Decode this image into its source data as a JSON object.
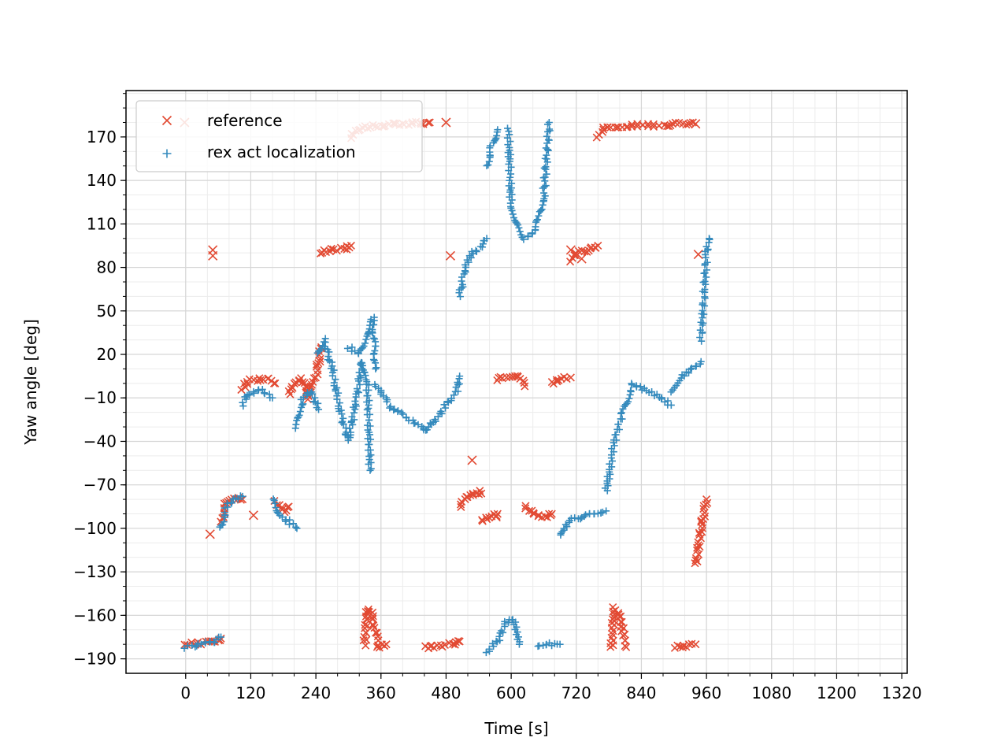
{
  "chart_data": {
    "type": "scatter",
    "title": "",
    "xlabel": "Time [s]",
    "ylabel": "Yaw angle [deg]",
    "xlim": [
      -110,
      1330
    ],
    "ylim": [
      -200,
      202
    ],
    "xticks": [
      0,
      120,
      240,
      360,
      480,
      600,
      720,
      840,
      960,
      1080,
      1200,
      1320
    ],
    "xtick_labels": [
      "0",
      "120",
      "240",
      "360",
      "480",
      "600",
      "720",
      "840",
      "960",
      "1080",
      "1200",
      "1320"
    ],
    "yticks": [
      170,
      140,
      110,
      80,
      50,
      20,
      -10,
      -40,
      -70,
      -100,
      -130,
      -160,
      -190
    ],
    "ytick_labels": [
      "170",
      "140",
      "110",
      "80",
      "50",
      "20",
      "−10",
      "−40",
      "−70",
      "−100",
      "−130",
      "−160",
      "−190"
    ],
    "grid": true,
    "legend_position": "upper-left",
    "series": [
      {
        "name": "reference",
        "marker": "x",
        "color": "#e24a33",
        "segments": [
          [
            [
              0,
              -180
            ],
            [
              35,
              -179
            ],
            [
              60,
              -178
            ],
            [
              65,
              -176
            ]
          ],
          [
            [
              65,
              -95
            ],
            [
              75,
              -82
            ],
            [
              95,
              -78
            ],
            [
              105,
              -80
            ]
          ],
          [
            [
              105,
              -4
            ],
            [
              115,
              2
            ],
            [
              150,
              3
            ],
            [
              165,
              0
            ]
          ],
          [
            [
              165,
              -82
            ],
            [
              180,
              -88
            ],
            [
              190,
              -85
            ]
          ],
          [
            [
              190,
              -8
            ],
            [
              200,
              0
            ],
            [
              215,
              3
            ],
            [
              225,
              -8
            ]
          ],
          [
            [
              225,
              -10
            ],
            [
              240,
              5
            ],
            [
              250,
              25
            ]
          ],
          [
            [
              250,
              90
            ],
            [
              265,
              92
            ],
            [
              295,
              93
            ],
            [
              305,
              95
            ]
          ],
          [
            [
              305,
              170
            ],
            [
              320,
              176
            ],
            [
              360,
              178
            ],
            [
              400,
              179
            ],
            [
              450,
              180
            ]
          ],
          [
            [
              330,
              -180
            ],
            [
              335,
              -155
            ],
            [
              345,
              -160
            ],
            [
              355,
              -182
            ],
            [
              370,
              -180
            ]
          ],
          [
            [
              440,
              -182
            ],
            [
              470,
              -181
            ],
            [
              500,
              -179
            ],
            [
              505,
              -178
            ]
          ],
          [
            [
              505,
              -85
            ],
            [
              520,
              -78
            ],
            [
              540,
              -75
            ],
            [
              545,
              -76
            ]
          ],
          [
            [
              545,
              -95
            ],
            [
              560,
              -92
            ],
            [
              575,
              -90
            ]
          ],
          [
            [
              575,
              3
            ],
            [
              590,
              5
            ],
            [
              615,
              4
            ],
            [
              625,
              -2
            ]
          ],
          [
            [
              625,
              -85
            ],
            [
              640,
              -90
            ],
            [
              660,
              -92
            ],
            [
              675,
              -90
            ]
          ],
          [
            [
              675,
              0
            ],
            [
              690,
              3
            ],
            [
              710,
              4
            ]
          ],
          [
            [
              710,
              85
            ],
            [
              720,
              90
            ],
            [
              750,
              93
            ],
            [
              760,
              95
            ]
          ],
          [
            [
              760,
              170
            ],
            [
              775,
              177
            ],
            [
              820,
              178
            ],
            [
              880,
              178
            ],
            [
              935,
              180
            ]
          ],
          [
            [
              785,
              -182
            ],
            [
              790,
              -155
            ],
            [
              800,
              -160
            ],
            [
              812,
              -182
            ]
          ],
          [
            [
              900,
              -182
            ],
            [
              920,
              -181
            ],
            [
              940,
              -180
            ]
          ],
          [
            [
              940,
              -125
            ],
            [
              950,
              -100
            ],
            [
              960,
              -80
            ]
          ]
        ],
        "outliers": [
          [
            50,
            92
          ],
          [
            50,
            88
          ],
          [
            -2,
            180
          ],
          [
            45,
            -104
          ],
          [
            125,
            -91
          ],
          [
            480,
            180
          ],
          [
            488,
            88
          ],
          [
            528,
            -53
          ],
          [
            572,
            -92
          ],
          [
            710,
            92
          ],
          [
            730,
            86
          ],
          [
            940,
            179
          ],
          [
            945,
            89
          ]
        ]
      },
      {
        "name": "rex act localization",
        "marker": "+",
        "color": "#348abd",
        "segments": [
          [
            [
              0,
              -182
            ],
            [
              30,
              -180
            ],
            [
              55,
              -178
            ],
            [
              65,
              -175
            ]
          ],
          [
            [
              65,
              -100
            ],
            [
              75,
              -85
            ],
            [
              90,
              -80
            ],
            [
              105,
              -78
            ]
          ],
          [
            [
              105,
              -15
            ],
            [
              115,
              -7
            ],
            [
              140,
              -5
            ],
            [
              160,
              -10
            ]
          ],
          [
            [
              160,
              -80
            ],
            [
              175,
              -92
            ],
            [
              190,
              -95
            ],
            [
              205,
              -100
            ]
          ],
          [
            [
              205,
              -30
            ],
            [
              215,
              -12
            ],
            [
              230,
              -5
            ],
            [
              245,
              -18
            ]
          ],
          [
            [
              245,
              20
            ],
            [
              255,
              30
            ],
            [
              270,
              10
            ],
            [
              285,
              -20
            ],
            [
              300,
              -40
            ],
            [
              315,
              -10
            ],
            [
              325,
              15
            ],
            [
              335,
              0
            ],
            [
              340,
              -60
            ]
          ],
          [
            [
              300,
              25
            ],
            [
              320,
              20
            ],
            [
              345,
              45
            ],
            [
              350,
              10
            ]
          ],
          [
            [
              350,
              0
            ],
            [
              375,
              -15
            ],
            [
              400,
              -22
            ],
            [
              425,
              -28
            ],
            [
              445,
              -32
            ]
          ],
          [
            [
              445,
              -32
            ],
            [
              470,
              -20
            ],
            [
              500,
              -5
            ],
            [
              505,
              5
            ]
          ],
          [
            [
              505,
              60
            ],
            [
              515,
              80
            ],
            [
              530,
              90
            ],
            [
              545,
              95
            ],
            [
              555,
              100
            ]
          ],
          [
            [
              555,
              150
            ],
            [
              565,
              165
            ],
            [
              575,
              175
            ]
          ],
          [
            [
              595,
              175
            ],
            [
              600,
              120
            ],
            [
              625,
              100
            ],
            [
              645,
              105
            ],
            [
              660,
              130
            ],
            [
              670,
              180
            ]
          ],
          [
            [
              555,
              -185
            ],
            [
              575,
              -178
            ],
            [
              590,
              -165
            ],
            [
              605,
              -162
            ],
            [
              615,
              -180
            ]
          ],
          [
            [
              650,
              -182
            ],
            [
              670,
              -180
            ],
            [
              690,
              -180
            ]
          ],
          [
            [
              690,
              -105
            ],
            [
              705,
              -95
            ],
            [
              730,
              -92
            ],
            [
              755,
              -90
            ],
            [
              775,
              -88
            ]
          ],
          [
            [
              775,
              -75
            ],
            [
              790,
              -40
            ],
            [
              805,
              -20
            ],
            [
              820,
              -5
            ]
          ],
          [
            [
              820,
              0
            ],
            [
              850,
              -5
            ],
            [
              875,
              -10
            ],
            [
              895,
              -15
            ]
          ],
          [
            [
              895,
              -5
            ],
            [
              915,
              5
            ],
            [
              935,
              10
            ],
            [
              950,
              15
            ]
          ],
          [
            [
              950,
              30
            ],
            [
              955,
              60
            ],
            [
              960,
              90
            ],
            [
              965,
              100
            ]
          ]
        ]
      }
    ]
  }
}
